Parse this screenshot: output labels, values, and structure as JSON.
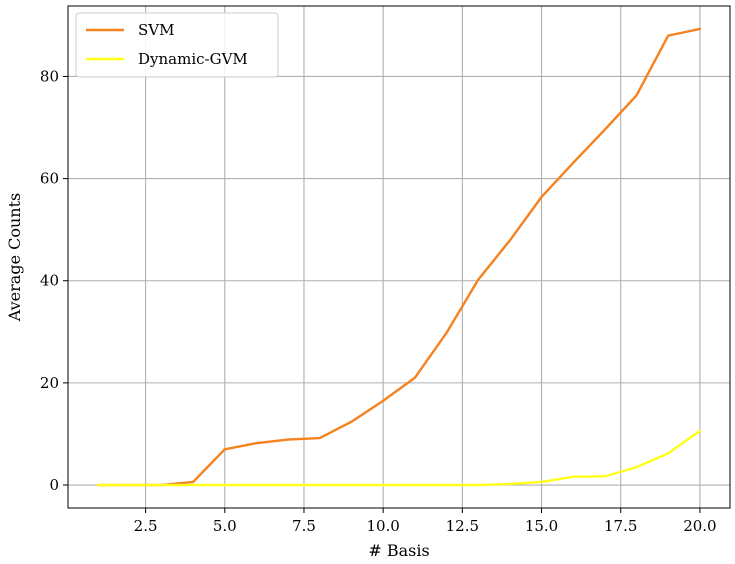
{
  "chart_data": {
    "type": "line",
    "title": "",
    "xlabel": "# Basis",
    "ylabel": "Average Counts",
    "xlim": [
      0.05,
      20.95
    ],
    "ylim": [
      -4.5,
      93.8
    ],
    "xticks": [
      2.5,
      5.0,
      7.5,
      10.0,
      12.5,
      15.0,
      17.5,
      20.0
    ],
    "xtick_labels": [
      "2.5",
      "5.0",
      "7.5",
      "10.0",
      "12.5",
      "15.0",
      "17.5",
      "20.0"
    ],
    "yticks": [
      0,
      20,
      40,
      60,
      80
    ],
    "ytick_labels": [
      "0",
      "20",
      "40",
      "60",
      "80"
    ],
    "grid": true,
    "legend_position": "top-left",
    "x": [
      1,
      2,
      3,
      4,
      5,
      6,
      7,
      8,
      9,
      10,
      11,
      12,
      13,
      14,
      15,
      16,
      17,
      18,
      19,
      20
    ],
    "series": [
      {
        "name": "SVM",
        "color": "#f5821f",
        "values": [
          0.0,
          0.0,
          0.0,
          0.6,
          7.0,
          8.2,
          8.9,
          9.2,
          12.4,
          16.5,
          21.0,
          29.8,
          40.2,
          47.9,
          56.4,
          63.1,
          69.6,
          76.3,
          88.0,
          89.3
        ]
      },
      {
        "name": "Dynamic-GVM",
        "color": "#ffff1a",
        "values": [
          0.0,
          0.0,
          0.0,
          0.0,
          0.0,
          0.0,
          0.0,
          0.0,
          0.0,
          0.0,
          0.0,
          0.0,
          0.0,
          0.2,
          0.6,
          1.6,
          1.7,
          3.5,
          6.2,
          10.6
        ]
      }
    ]
  }
}
